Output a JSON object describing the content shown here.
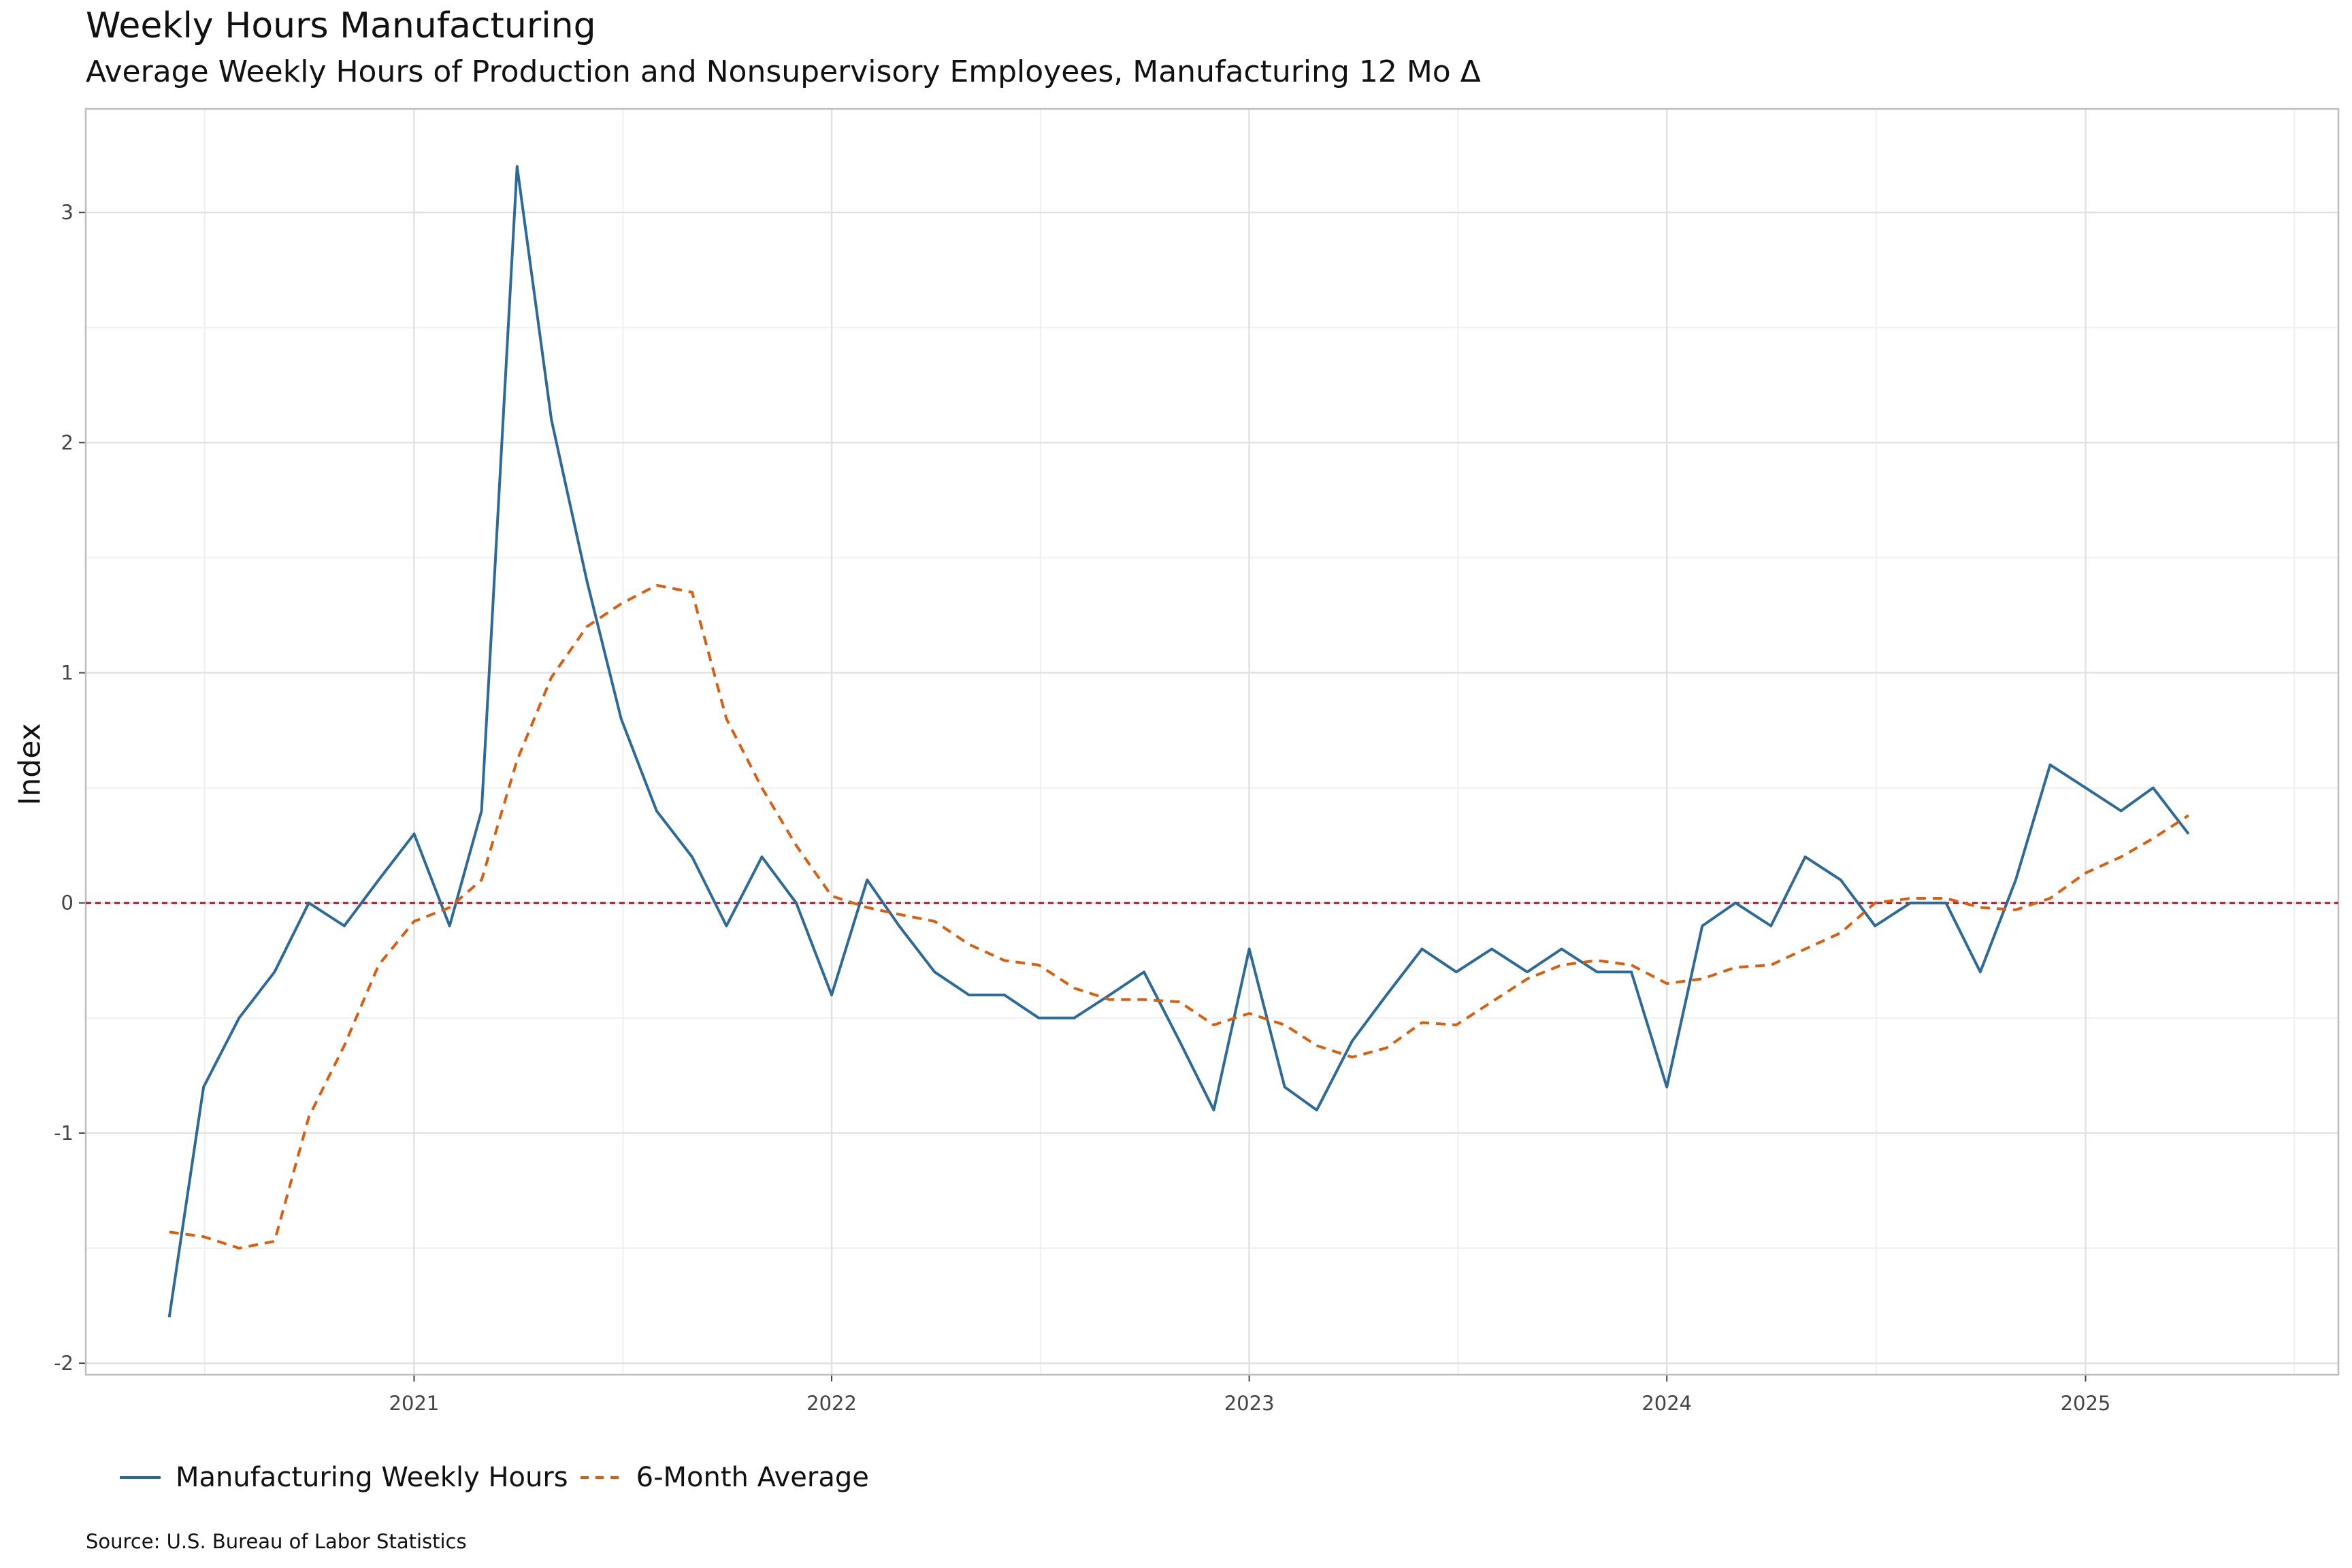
{
  "title": "Weekly Hours Manufacturing",
  "subtitle": "Average Weekly Hours of Production and Nonsupervisory Employees, Manufacturing 12 Mo Δ",
  "source": "Source: U.S. Bureau of Labor Statistics",
  "chart_data": {
    "type": "line",
    "ylabel": "Index",
    "xlabel": "",
    "ylim": [
      -2.05,
      3.45
    ],
    "xlim": [
      "2020-03-20",
      "2025-08-10"
    ],
    "y_ticks": [
      -2,
      -1,
      0,
      1,
      2,
      3
    ],
    "y_tick_labels": [
      "-2",
      "-1",
      "0",
      "1",
      "2",
      "3"
    ],
    "x_ticks": [
      "2021-01-01",
      "2022-01-01",
      "2023-01-01",
      "2024-01-01",
      "2025-01-01"
    ],
    "x_tick_labels": [
      "2021",
      "2022",
      "2023",
      "2024",
      "2025"
    ],
    "grid": true,
    "legend_position": "bottom-left",
    "reference_line": {
      "y": 0,
      "style": "dashed",
      "color": "#b2182b"
    },
    "x": [
      "2020-06",
      "2020-07",
      "2020-08",
      "2020-09",
      "2020-10",
      "2020-11",
      "2020-12",
      "2021-01",
      "2021-02",
      "2021-03",
      "2021-04",
      "2021-05",
      "2021-06",
      "2021-07",
      "2021-08",
      "2021-09",
      "2021-10",
      "2021-11",
      "2021-12",
      "2022-01",
      "2022-02",
      "2022-03",
      "2022-04",
      "2022-05",
      "2022-06",
      "2022-07",
      "2022-08",
      "2022-09",
      "2022-10",
      "2022-11",
      "2022-12",
      "2023-01",
      "2023-02",
      "2023-03",
      "2023-04",
      "2023-05",
      "2023-06",
      "2023-07",
      "2023-08",
      "2023-09",
      "2023-10",
      "2023-11",
      "2023-12",
      "2024-01",
      "2024-02",
      "2024-03",
      "2024-04",
      "2024-05",
      "2024-06",
      "2024-07",
      "2024-08",
      "2024-09",
      "2024-10",
      "2024-11",
      "2024-12",
      "2025-01",
      "2025-02",
      "2025-03",
      "2025-04"
    ],
    "series": [
      {
        "name": "Manufacturing Weekly Hours",
        "color": "#2c6a9a",
        "style": "solid",
        "values": [
          -1.8,
          -0.8,
          -0.5,
          -0.3,
          0.0,
          -0.1,
          0.1,
          0.3,
          -0.1,
          0.4,
          3.2,
          2.1,
          1.4,
          0.8,
          0.4,
          0.2,
          -0.1,
          0.2,
          0.0,
          -0.4,
          0.1,
          -0.1,
          -0.3,
          -0.4,
          -0.4,
          -0.5,
          -0.5,
          -0.4,
          -0.3,
          -0.6,
          -0.9,
          -0.2,
          -0.8,
          -0.9,
          -0.6,
          -0.4,
          -0.2,
          -0.3,
          -0.2,
          -0.3,
          -0.2,
          -0.3,
          -0.3,
          -0.8,
          -0.1,
          0.0,
          -0.1,
          0.2,
          0.1,
          -0.1,
          0.0,
          0.0,
          -0.3,
          0.1,
          0.6,
          0.5,
          0.4,
          0.5,
          0.3
        ]
      },
      {
        "name": "6-Month Average",
        "color": "#d95f0e",
        "style": "dashed",
        "values": [
          -1.43,
          -1.45,
          -1.5,
          -1.47,
          -0.93,
          -0.62,
          -0.27,
          -0.08,
          -0.02,
          0.1,
          0.62,
          0.98,
          1.2,
          1.3,
          1.38,
          1.35,
          0.8,
          0.5,
          0.25,
          0.03,
          -0.02,
          -0.05,
          -0.08,
          -0.18,
          -0.25,
          -0.27,
          -0.37,
          -0.42,
          -0.42,
          -0.43,
          -0.53,
          -0.48,
          -0.53,
          -0.62,
          -0.67,
          -0.63,
          -0.52,
          -0.53,
          -0.43,
          -0.33,
          -0.27,
          -0.25,
          -0.27,
          -0.35,
          -0.33,
          -0.28,
          -0.27,
          -0.2,
          -0.13,
          0.0,
          0.02,
          0.02,
          -0.02,
          -0.03,
          0.02,
          0.13,
          0.2,
          0.28,
          0.38
        ]
      }
    ]
  },
  "legend": {
    "items": [
      {
        "label": "Manufacturing Weekly Hours",
        "color": "#2c6a9a",
        "style": "solid"
      },
      {
        "label": "6-Month Average",
        "color": "#d95f0e",
        "style": "dashed"
      }
    ]
  }
}
